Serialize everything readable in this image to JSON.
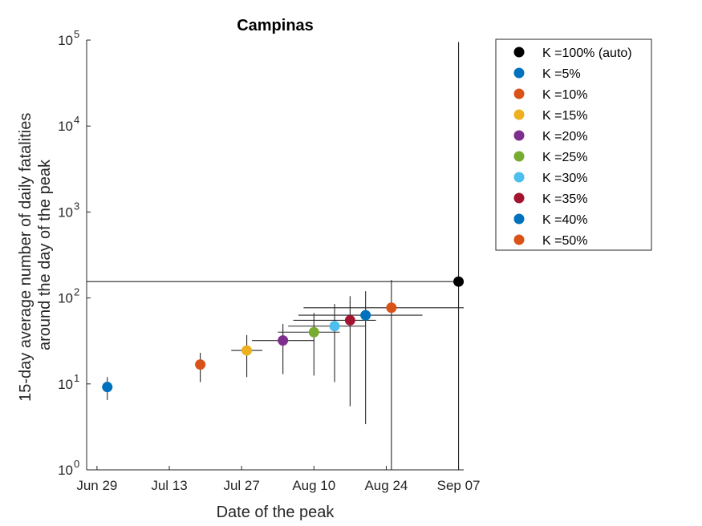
{
  "chart_data": {
    "type": "scatter",
    "title": "Campinas",
    "xlabel": "Date of the peak",
    "ylabel": [
      "15-day average number of daily fatalities",
      "around the day of the peak"
    ],
    "x_axis": {
      "type": "date",
      "min": "2020-06-27",
      "max": "2020-09-08",
      "ticks": [
        {
          "date": "2020-06-29",
          "label": "Jun 29"
        },
        {
          "date": "2020-07-13",
          "label": "Jul 13"
        },
        {
          "date": "2020-07-27",
          "label": "Jul 27"
        },
        {
          "date": "2020-08-10",
          "label": "Aug 10"
        },
        {
          "date": "2020-08-24",
          "label": "Aug 24"
        },
        {
          "date": "2020-09-07",
          "label": "Sep 07"
        }
      ]
    },
    "y_axis": {
      "scale": "log",
      "min": 1,
      "max": 100000,
      "ticks": [
        {
          "value": 1,
          "base": "10",
          "exp": "0"
        },
        {
          "value": 10,
          "base": "10",
          "exp": "1"
        },
        {
          "value": 100,
          "base": "10",
          "exp": "2"
        },
        {
          "value": 1000,
          "base": "10",
          "exp": "3"
        },
        {
          "value": 10000,
          "base": "10",
          "exp": "4"
        },
        {
          "value": 100000,
          "base": "10",
          "exp": "5"
        }
      ]
    },
    "grid": false,
    "legend_position": "outside-top-right",
    "series": [
      {
        "name": "K =100% (auto)",
        "color": "#000000",
        "x": "2020-09-07",
        "y": 155,
        "xerr": [
          "2020-06-27",
          "2020-09-08"
        ],
        "yerr": [
          1,
          95000
        ]
      },
      {
        "name": "K =5%",
        "color": "#0072BD",
        "x": "2020-07-01",
        "y": 9.2,
        "xerr": [
          "2020-06-30",
          "2020-07-02"
        ],
        "yerr": [
          6.5,
          12
        ]
      },
      {
        "name": "K =10%",
        "color": "#D95319",
        "x": "2020-07-19",
        "y": 16.8,
        "xerr": [
          "2020-07-18",
          "2020-07-20"
        ],
        "yerr": [
          10.5,
          23
        ]
      },
      {
        "name": "K =15%",
        "color": "#EDB120",
        "x": "2020-07-28",
        "y": 24.5,
        "xerr": [
          "2020-07-25",
          "2020-07-31"
        ],
        "yerr": [
          12,
          37
        ]
      },
      {
        "name": "K =20%",
        "color": "#7E2F8E",
        "x": "2020-08-04",
        "y": 32,
        "xerr": [
          "2020-07-29",
          "2020-08-10"
        ],
        "yerr": [
          13,
          50
        ]
      },
      {
        "name": "K =25%",
        "color": "#77AC30",
        "x": "2020-08-10",
        "y": 40,
        "xerr": [
          "2020-08-03",
          "2020-08-15"
        ],
        "yerr": [
          12.5,
          67
        ]
      },
      {
        "name": "K =30%",
        "color": "#4DBEEE",
        "x": "2020-08-14",
        "y": 47,
        "xerr": [
          "2020-08-05",
          "2020-08-20"
        ],
        "yerr": [
          10.5,
          85
        ]
      },
      {
        "name": "K =35%",
        "color": "#A2142F",
        "x": "2020-08-17",
        "y": 55,
        "xerr": [
          "2020-08-06",
          "2020-08-22"
        ],
        "yerr": [
          5.5,
          105
        ]
      },
      {
        "name": "K =40%",
        "color": "#0072BD",
        "x": "2020-08-20",
        "y": 63,
        "xerr": [
          "2020-08-07",
          "2020-08-31"
        ],
        "yerr": [
          3.4,
          120
        ]
      },
      {
        "name": "K =50%",
        "color": "#D95319",
        "x": "2020-08-25",
        "y": 77,
        "xerr": [
          "2020-08-08",
          "2020-09-08"
        ],
        "yerr": [
          1,
          162
        ]
      }
    ]
  }
}
